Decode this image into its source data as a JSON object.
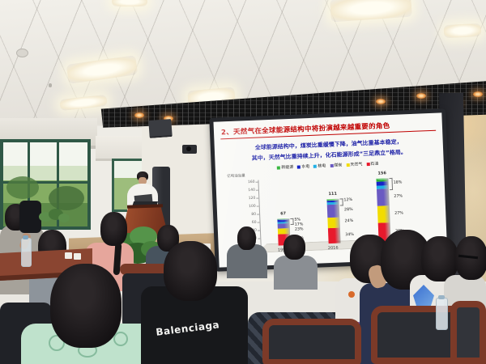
{
  "slide": {
    "title": "2、天然气在全球能源结构中将扮演越来越重要的角色",
    "title_color": "#c00000",
    "body_color": "#1f23a8",
    "body_lines": [
      "全球能源结构中，煤炭比重缓慢下降，油气比重基本稳定，",
      "其中，天然气比重持续上升，化石能源形成“三足鼎立”格局。"
    ]
  },
  "chart_data": {
    "type": "bar",
    "stacked": true,
    "title": "",
    "ylabel": "亿吨油当量",
    "xlabel": "",
    "ylim": [
      0,
      160
    ],
    "yticks": [
      0,
      20,
      40,
      60,
      80,
      100,
      120,
      140,
      160
    ],
    "grid": false,
    "legend_position": "top",
    "categories": [
      "1990",
      "2016",
      "2030"
    ],
    "totals": [
      67,
      111,
      156
    ],
    "series": [
      {
        "name": "新能源",
        "color": "#2eb335",
        "share": [
          0.05,
          0.04,
          0.05
        ]
      },
      {
        "name": "水电",
        "color": "#1523c8",
        "share": [
          0.08,
          0.05,
          0.07
        ]
      },
      {
        "name": "核电",
        "color": "#22b0e6",
        "share": [
          0.06,
          0.05,
          0.05
        ]
      },
      {
        "name": "煤炭",
        "color": "#6a5ac2",
        "share": [
          0.17,
          0.28,
          0.27
        ]
      },
      {
        "name": "天然气",
        "color": "#f2dc00",
        "share": [
          0.23,
          0.24,
          0.27
        ]
      },
      {
        "name": "石油",
        "color": "#e8192c",
        "share": [
          0.41,
          0.34,
          0.29
        ]
      }
    ],
    "segment_labels": [
      [
        "41%",
        "23%",
        "17%",
        "5%"
      ],
      [
        "34%",
        "24%",
        "28%",
        "12%"
      ],
      [
        "29%",
        "27%",
        "27%",
        "18%"
      ]
    ]
  },
  "audience": {
    "shirt_text": "Balenciaga"
  }
}
